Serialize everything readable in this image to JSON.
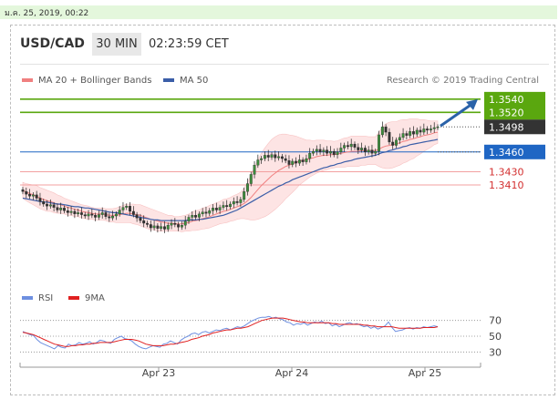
{
  "header": {
    "date": "ม.ค. 25, 2019, 00:22",
    "pair": "USD/CAD",
    "timeframe": "30 MIN",
    "time": "02:23:59 CET"
  },
  "legend": {
    "ma20": "MA 20 + Bollinger Bands",
    "ma50": "MA 50",
    "credit": "Research © 2019 Trading Central",
    "rsi": "RSI",
    "ma9": "9MA"
  },
  "colors": {
    "resistance": "#5aa70f",
    "support": "#1f66c4",
    "pivot": "#e05555",
    "current": "#333333",
    "ma20": "#f08080",
    "ma50": "#3b5ea8",
    "band": "#fde0e0",
    "arrow": "#2a62a8",
    "rsi": "#6d8fe0",
    "ma9": "#e02020"
  },
  "chart_data": [
    {
      "type": "candlestick",
      "x_ticks": [
        "Apr 23",
        "Apr 24",
        "Apr 25"
      ],
      "ylim": [
        1.3265,
        1.3555
      ],
      "levels": [
        {
          "label": "1.3540",
          "value": 1.354,
          "kind": "resistance"
        },
        {
          "label": "1.3520",
          "value": 1.352,
          "kind": "resistance"
        },
        {
          "label": "1.3498",
          "value": 1.3498,
          "kind": "current"
        },
        {
          "label": "1.3460",
          "value": 1.346,
          "kind": "support"
        },
        {
          "label": "1.3430",
          "value": 1.343,
          "kind": "pivot"
        },
        {
          "label": "1.3410",
          "value": 1.341,
          "kind": "pivot"
        }
      ],
      "close": [
        1.34,
        1.3396,
        1.3393,
        1.3395,
        1.339,
        1.3385,
        1.3381,
        1.3378,
        1.338,
        1.3376,
        1.3372,
        1.3375,
        1.3371,
        1.3368,
        1.337,
        1.3366,
        1.3368,
        1.3365,
        1.3363,
        1.3366,
        1.3364,
        1.3361,
        1.3365,
        1.3368,
        1.3362,
        1.336,
        1.3363,
        1.3366,
        1.3372,
        1.3376,
        1.3378,
        1.337,
        1.3365,
        1.336,
        1.3356,
        1.3352,
        1.335,
        1.3345,
        1.3348,
        1.3344,
        1.3347,
        1.3343,
        1.3349,
        1.3352,
        1.335,
        1.3346,
        1.3349,
        1.3355,
        1.3361,
        1.3364,
        1.3361,
        1.3366,
        1.3369,
        1.3367,
        1.3371,
        1.3375,
        1.3372,
        1.3376,
        1.3379,
        1.3377,
        1.3381,
        1.3385,
        1.3383,
        1.3388,
        1.34,
        1.3412,
        1.3426,
        1.344,
        1.3448,
        1.345,
        1.3455,
        1.3452,
        1.3456,
        1.3451,
        1.3453,
        1.345,
        1.3447,
        1.3441,
        1.3446,
        1.3443,
        1.3448,
        1.3445,
        1.345,
        1.3458,
        1.3461,
        1.3464,
        1.346,
        1.3463,
        1.3458,
        1.3461,
        1.3456,
        1.346,
        1.3466,
        1.347,
        1.3468,
        1.3472,
        1.3467,
        1.3463,
        1.3466,
        1.346,
        1.3463,
        1.3458,
        1.3461,
        1.3486,
        1.3498,
        1.349,
        1.3475,
        1.347,
        1.3478,
        1.3482,
        1.3488,
        1.3485,
        1.3491,
        1.3487,
        1.3493,
        1.349,
        1.3495,
        1.3493,
        1.3495,
        1.3497,
        1.3498
      ],
      "ma20": [
        1.3402,
        1.3399,
        1.3397,
        1.3395,
        1.3393,
        1.339,
        1.3388,
        1.3386,
        1.3385,
        1.3383,
        1.3381,
        1.338,
        1.3378,
        1.3376,
        1.3375,
        1.3373,
        1.3372,
        1.337,
        1.3369,
        1.3368,
        1.3367,
        1.3366,
        1.3366,
        1.3366,
        1.3365,
        1.3364,
        1.3364,
        1.3364,
        1.3365,
        1.3366,
        1.3367,
        1.3367,
        1.3366,
        1.3365,
        1.3364,
        1.3362,
        1.336,
        1.3358,
        1.3357,
        1.3355,
        1.3354,
        1.3353,
        1.3352,
        1.3352,
        1.3351,
        1.3351,
        1.3351,
        1.3352,
        1.3353,
        1.3355,
        1.3356,
        1.3357,
        1.3359,
        1.336,
        1.3362,
        1.3364,
        1.3366,
        1.3368,
        1.337,
        1.3371,
        1.3373,
        1.3375,
        1.3377,
        1.3379,
        1.3382,
        1.3386,
        1.3391,
        1.3397,
        1.3403,
        1.3409,
        1.3414,
        1.3419,
        1.3424,
        1.3428,
        1.3432,
        1.3435,
        1.3438,
        1.344,
        1.3442,
        1.3444,
        1.3446,
        1.3447,
        1.3448,
        1.345,
        1.3451,
        1.3453,
        1.3454,
        1.3455,
        1.3455,
        1.3456,
        1.3456,
        1.3457,
        1.3458,
        1.3459,
        1.346,
        1.3461,
        1.3461,
        1.3461,
        1.3462,
        1.3462,
        1.3462,
        1.3462,
        1.3462,
        1.3464,
        1.3467,
        1.3469,
        1.347,
        1.3471,
        1.3472,
        1.3474,
        1.3476,
        1.3477,
        1.3479,
        1.348,
        1.3482,
        1.3483,
        1.3485,
        1.3486,
        1.3487,
        1.3489,
        1.349
      ],
      "band_width": [
        0.0012,
        0.0013,
        0.0014,
        0.0015,
        0.0016,
        0.0016,
        0.0016,
        0.0016,
        0.0015,
        0.0015,
        0.0014,
        0.0013,
        0.0012,
        0.0012,
        0.0011,
        0.0011,
        0.001,
        0.001,
        0.001,
        0.001,
        0.0009,
        0.0009,
        0.0009,
        0.0009,
        0.0009,
        0.001,
        0.001,
        0.0011,
        0.0012,
        0.0013,
        0.0014,
        0.0014,
        0.0015,
        0.0015,
        0.0016,
        0.0016,
        0.0016,
        0.0016,
        0.0015,
        0.0015,
        0.0014,
        0.0013,
        0.0012,
        0.0012,
        0.0011,
        0.0011,
        0.0012,
        0.0012,
        0.0013,
        0.0014,
        0.0015,
        0.0015,
        0.0016,
        0.0016,
        0.0017,
        0.0017,
        0.0017,
        0.0017,
        0.0018,
        0.0018,
        0.0018,
        0.0019,
        0.0019,
        0.002,
        0.0023,
        0.0028,
        0.0034,
        0.004,
        0.0045,
        0.0049,
        0.0052,
        0.0054,
        0.0055,
        0.0055,
        0.0054,
        0.0052,
        0.0049,
        0.0046,
        0.0043,
        0.004,
        0.0036,
        0.0033,
        0.003,
        0.0028,
        0.0026,
        0.0025,
        0.0024,
        0.0023,
        0.0022,
        0.0021,
        0.002,
        0.002,
        0.0021,
        0.0022,
        0.0022,
        0.0023,
        0.0023,
        0.0023,
        0.0022,
        0.0022,
        0.0021,
        0.0021,
        0.0021,
        0.0026,
        0.0031,
        0.0034,
        0.0035,
        0.0035,
        0.0034,
        0.0034,
        0.0033,
        0.0032,
        0.0031,
        0.003,
        0.0028,
        0.0026,
        0.0024,
        0.0022,
        0.002,
        0.0018,
        0.0017
      ],
      "ma50": [
        1.339,
        1.3389,
        1.3388,
        1.3387,
        1.3386,
        1.3385,
        1.3384,
        1.3384,
        1.3383,
        1.3382,
        1.3381,
        1.3381,
        1.338,
        1.3379,
        1.3378,
        1.3377,
        1.3377,
        1.3376,
        1.3375,
        1.3375,
        1.3374,
        1.3373,
        1.3372,
        1.3371,
        1.337,
        1.3369,
        1.3368,
        1.3368,
        1.3367,
        1.3366,
        1.3365,
        1.3364,
        1.3363,
        1.3362,
        1.3361,
        1.336,
        1.3359,
        1.3358,
        1.3357,
        1.3357,
        1.3356,
        1.3356,
        1.3356,
        1.3356,
        1.3356,
        1.3356,
        1.3356,
        1.3356,
        1.3357,
        1.3357,
        1.3357,
        1.3358,
        1.3358,
        1.3359,
        1.336,
        1.3361,
        1.3362,
        1.3363,
        1.3364,
        1.3366,
        1.3368,
        1.337,
        1.3372,
        1.3375,
        1.3378,
        1.3381,
        1.3384,
        1.3387,
        1.339,
        1.3393,
        1.3396,
        1.3399,
        1.3402,
        1.3405,
        1.3408,
        1.341,
        1.3413,
        1.3415,
        1.3418,
        1.342,
        1.3422,
        1.3424,
        1.3426,
        1.3428,
        1.343,
        1.3432,
        1.3434,
        1.3436,
        1.3437,
        1.3439,
        1.344,
        1.3442,
        1.3443,
        1.3445,
        1.3446,
        1.3447,
        1.3449,
        1.345,
        1.3451,
        1.3452,
        1.3453,
        1.3454,
        1.3455,
        1.3457,
        1.3459,
        1.346,
        1.3462,
        1.3463,
        1.3465,
        1.3466,
        1.3468,
        1.3469,
        1.3471,
        1.3472,
        1.3473,
        1.3474,
        1.3475,
        1.3476,
        1.3477,
        1.3478,
        1.3479
      ],
      "forecast": {
        "from": 1.3498,
        "to": 1.354
      }
    },
    {
      "type": "line",
      "name": "RSI",
      "ylim": [
        20,
        80
      ],
      "y_ticks": [
        70,
        50,
        30
      ],
      "rsi": [
        56,
        54,
        52,
        51,
        46,
        42,
        40,
        38,
        36,
        34,
        38,
        36,
        35,
        40,
        38,
        39,
        42,
        40,
        41,
        43,
        40,
        42,
        45,
        44,
        42,
        41,
        46,
        48,
        50,
        47,
        46,
        44,
        40,
        37,
        35,
        34,
        36,
        38,
        37,
        36,
        40,
        41,
        44,
        42,
        40,
        45,
        48,
        50,
        53,
        54,
        52,
        55,
        56,
        54,
        56,
        58,
        57,
        59,
        60,
        58,
        60,
        62,
        61,
        63,
        66,
        69,
        71,
        73,
        74,
        74,
        75,
        73,
        74,
        72,
        71,
        68,
        67,
        64,
        66,
        65,
        67,
        64,
        66,
        68,
        67,
        69,
        66,
        67,
        63,
        65,
        62,
        64,
        66,
        67,
        65,
        66,
        64,
        62,
        63,
        60,
        62,
        59,
        61,
        63,
        68,
        61,
        56,
        57,
        58,
        60,
        61,
        59,
        61,
        60,
        62,
        61,
        62,
        63,
        62
      ],
      "ma9": [
        55,
        54,
        53,
        52,
        50,
        48,
        46,
        44,
        42,
        40,
        39,
        38,
        37,
        37,
        38,
        38,
        39,
        39,
        40,
        40,
        41,
        41,
        42,
        42,
        42,
        42,
        43,
        44,
        45,
        46,
        46,
        46,
        45,
        44,
        42,
        40,
        39,
        38,
        38,
        38,
        38,
        39,
        40,
        40,
        41,
        42,
        43,
        44,
        46,
        47,
        48,
        50,
        51,
        52,
        54,
        55,
        56,
        57,
        58,
        58,
        59,
        60,
        60,
        61,
        62,
        64,
        66,
        68,
        70,
        71,
        72,
        73,
        73,
        73,
        73,
        72,
        71,
        70,
        69,
        68,
        68,
        67,
        67,
        67,
        67,
        67,
        67,
        67,
        66,
        66,
        65,
        65,
        65,
        65,
        65,
        65,
        65,
        64,
        64,
        63,
        63,
        62,
        62,
        62,
        62,
        62,
        61,
        60,
        60,
        60,
        60,
        60,
        60,
        60,
        61,
        61,
        61,
        61,
        62
      ]
    }
  ]
}
